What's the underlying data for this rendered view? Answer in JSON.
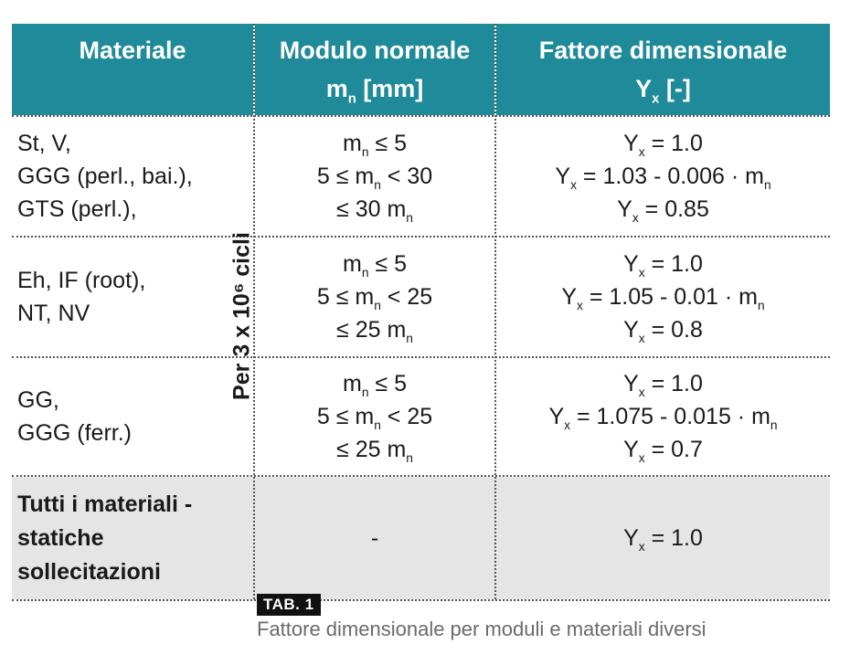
{
  "header": {
    "col1": "Materiale",
    "col2_line1": "Modulo normale",
    "col2_m": "m",
    "col2_sub": "n",
    "col2_unit": " [mm]",
    "col3_line1": "Fattore dimensionale",
    "col3_y": "Y",
    "col3_sub": "x",
    "col3_unit": " [-]"
  },
  "vertical_label": "Per 3 x 10⁶ cicli",
  "rows": [
    {
      "materials": [
        "St, V,",
        "GGG (perl., bai.),",
        "GTS (perl.),"
      ],
      "modulo": [
        "m_n ≤ 5",
        "5 ≤ m_n < 30",
        "≤ 30 m_n"
      ],
      "fattore": [
        "Y_x = 1.0",
        "Y_x = 1.03 - 0.006 · m_n",
        "Y_x = 0.85"
      ]
    },
    {
      "materials": [
        "Eh, IF (root),",
        "NT, NV"
      ],
      "modulo": [
        "m_n ≤ 5",
        "5 ≤ m_n < 25",
        "≤ 25 m_n"
      ],
      "fattore": [
        "Y_x = 1.0",
        "Y_x = 1.05 - 0.01 · m_n",
        "Y_x = 0.8"
      ]
    },
    {
      "materials": [
        "GG,",
        "GGG (ferr.)"
      ],
      "modulo": [
        "m_n ≤ 5",
        "5 ≤ m_n < 25",
        "≤ 25 m_n"
      ],
      "fattore": [
        "Y_x = 1.0",
        "Y_x = 1.075 - 0.015 · m_n",
        "Y_x = 0.7"
      ]
    },
    {
      "materials": [
        "Tutti i materiali -",
        "statiche",
        "sollecitazioni"
      ],
      "modulo": [
        "-"
      ],
      "fattore": [
        "Y_x = 1.0"
      ]
    }
  ],
  "tag": "TAB. 1",
  "caption": "Fattore dimensionale per moduli e materiali diversi",
  "colors": {
    "header_bg": "#1f8a99",
    "header_text": "#ffffff",
    "static_row_bg": "#e5e5e5"
  }
}
